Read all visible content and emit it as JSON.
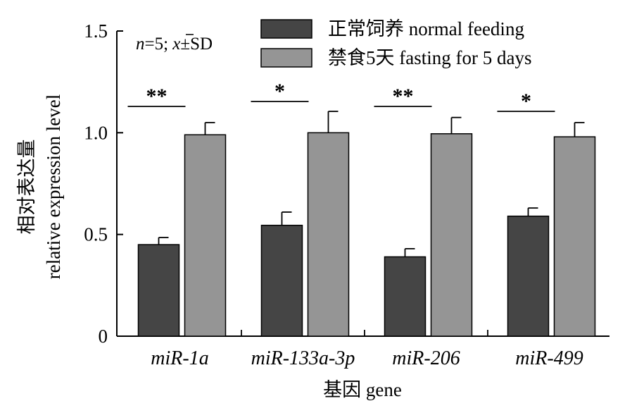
{
  "chart_data": {
    "type": "bar",
    "annotation": {
      "n_label": "n",
      "rest": "=5; ",
      "mean_symbol": "x",
      "sd": "±SD"
    },
    "xlabel": "基因 gene",
    "ylabel_cn": "相对表达量",
    "ylabel_en": "relative expression level",
    "ylim": [
      0,
      1.5
    ],
    "yticks": [
      0,
      0.5,
      1.0,
      1.5
    ],
    "ytick_labels": [
      "0",
      "0.5",
      "1.0",
      "1.5"
    ],
    "categories": [
      "miR-1a",
      "miR-133a-3p",
      "miR-206",
      "miR-499"
    ],
    "series": [
      {
        "name": "正常饲养  normal feeding",
        "color": "#454545",
        "values": [
          0.45,
          0.545,
          0.39,
          0.59
        ],
        "errors": [
          0.035,
          0.065,
          0.04,
          0.04
        ]
      },
      {
        "name": "禁食5天 fasting for 5 days",
        "color": "#959595",
        "values": [
          0.99,
          1.0,
          0.995,
          0.98
        ],
        "errors": [
          0.06,
          0.105,
          0.08,
          0.07
        ]
      }
    ],
    "significance": [
      "**",
      "*",
      "**",
      "*"
    ],
    "legend_position": "top"
  }
}
